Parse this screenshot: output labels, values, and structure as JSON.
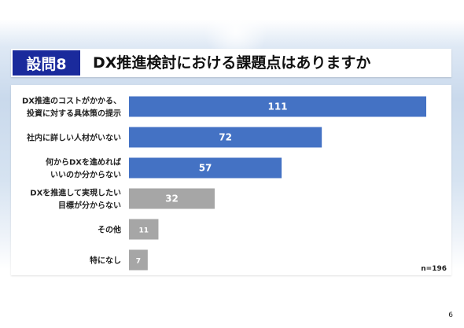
{
  "question_badge": "設問8",
  "title": "DX推進検討における課題点はありますか",
  "sample_size": "n=196",
  "page_number": "6",
  "colors": {
    "badge": "#1a2a9c",
    "primary_bar": "#4472c4",
    "secondary_bar": "#a6a6a6"
  },
  "chart_data": {
    "type": "bar",
    "orientation": "horizontal",
    "categories": [
      [
        "DX推進のコストがかかる、",
        "投資に対する具体策の提示"
      ],
      [
        "社内に詳しい人材がいない"
      ],
      [
        "何からDXを進めれば",
        "いいのか分からない"
      ],
      [
        "DXを推進して実現したい",
        "目標が分からない"
      ],
      [
        "その他"
      ],
      [
        "特になし"
      ]
    ],
    "values": [
      111,
      72,
      57,
      32,
      11,
      7
    ],
    "bar_colors": [
      "#4472c4",
      "#4472c4",
      "#4472c4",
      "#a6a6a6",
      "#a6a6a6",
      "#a6a6a6"
    ],
    "xlim": [
      0,
      111
    ],
    "grid": false,
    "legend": "none"
  }
}
